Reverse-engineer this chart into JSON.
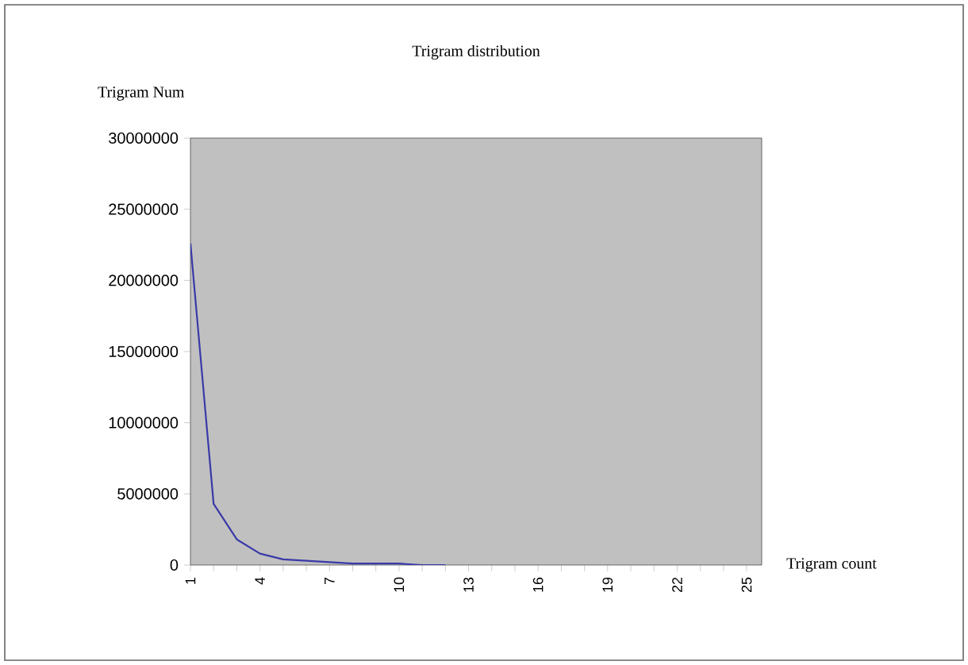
{
  "chart_data": {
    "type": "line",
    "title": "Trigram distribution",
    "ylabel": "Trigram Num",
    "xlabel": "Trigram count",
    "categories": [
      "1",
      null,
      null,
      "4",
      null,
      null,
      "7",
      null,
      null,
      "10",
      null,
      null,
      "13",
      null,
      null,
      "16",
      null,
      null,
      "19",
      null,
      null,
      "22",
      null,
      null,
      "25"
    ],
    "series": [
      {
        "color": "#3a3aa8",
        "values": [
          22600000,
          4300000,
          1800000,
          800000,
          400000,
          300000,
          200000,
          100000,
          100000,
          100000,
          0,
          0,
          null,
          null,
          null,
          null,
          null,
          null,
          null,
          null,
          null,
          null,
          null,
          null,
          null
        ]
      }
    ],
    "ylim": [
      0,
      30000000
    ],
    "yticks": [
      0,
      5000000,
      10000000,
      15000000,
      20000000,
      25000000,
      30000000
    ],
    "grid": false,
    "marker": "none",
    "line_style": "solid"
  }
}
